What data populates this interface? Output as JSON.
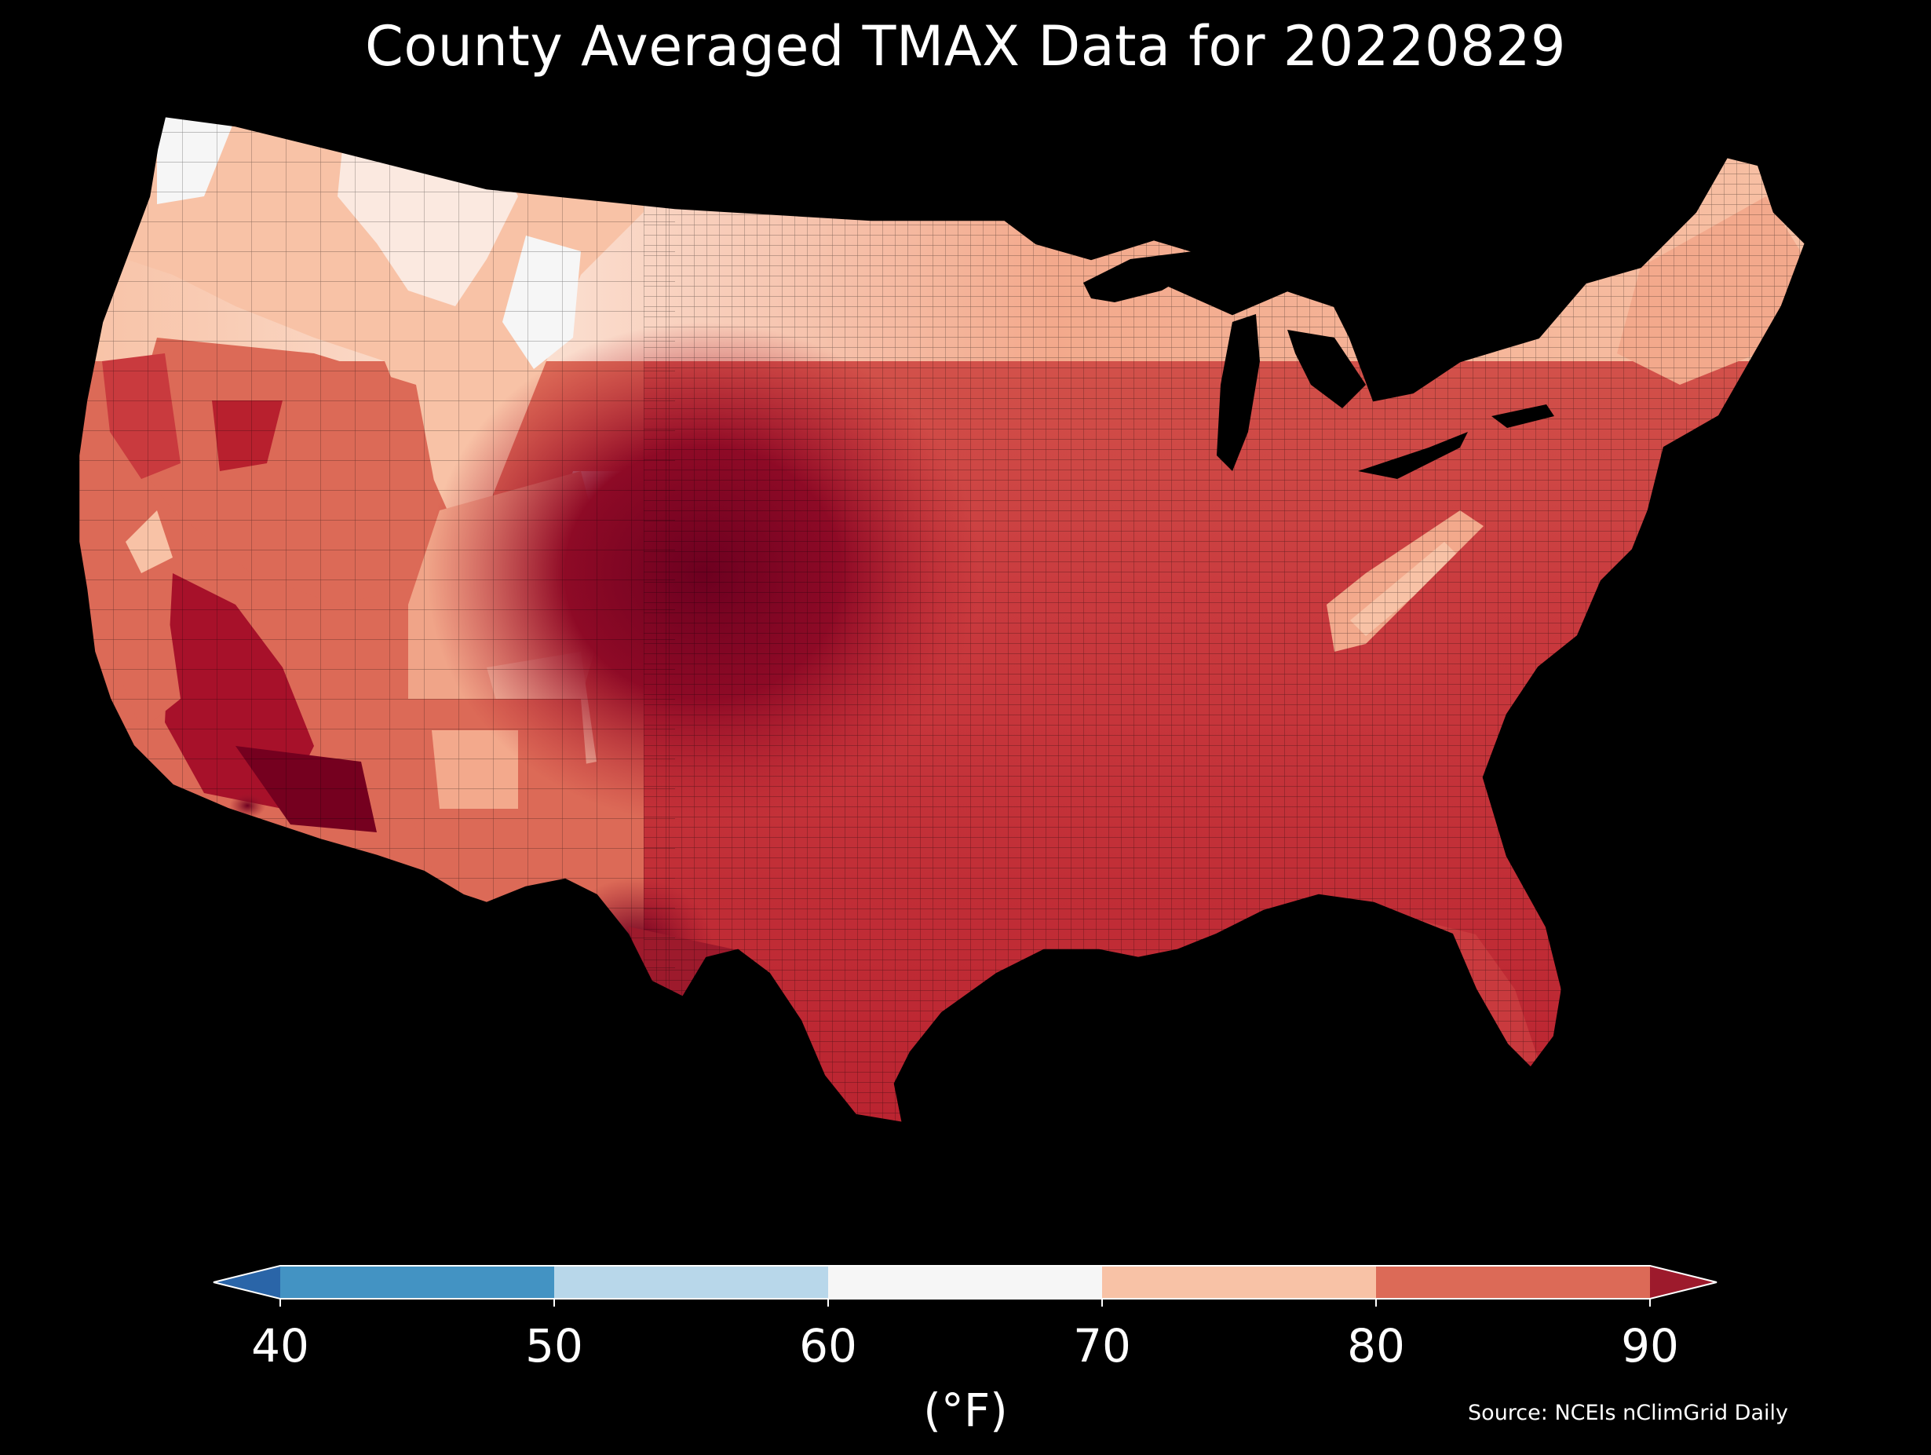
{
  "title": "County Averaged TMAX Data for 20220829",
  "source": "Source: NCEIs nClimGrid Daily",
  "map_data": {
    "region": "CONUS counties",
    "variable": "TMAX",
    "date": "20220829",
    "extend": "both"
  },
  "colorbar": {
    "unit_label": "(°F)",
    "ticks": [
      "40",
      "50",
      "60",
      "70",
      "80",
      "90"
    ],
    "bins": [
      {
        "from": 40,
        "to": 50,
        "color": "#4393c3"
      },
      {
        "from": 50,
        "to": 60,
        "color": "#b8d7ea"
      },
      {
        "from": 60,
        "to": 70,
        "color": "#f6f6f6"
      },
      {
        "from": 70,
        "to": 80,
        "color": "#f8c2a6"
      },
      {
        "from": 80,
        "to": 90,
        "color": "#dc6a57"
      }
    ],
    "under_color": "#2a65a8",
    "over_color": "#9d1a2c"
  },
  "palette": {
    "coolest": "#f6f6f6",
    "cool": "#f8c2a6",
    "warm": "#dc6a57",
    "hot": "#b8202e",
    "hottest": "#6d0020",
    "water": "#000000"
  }
}
